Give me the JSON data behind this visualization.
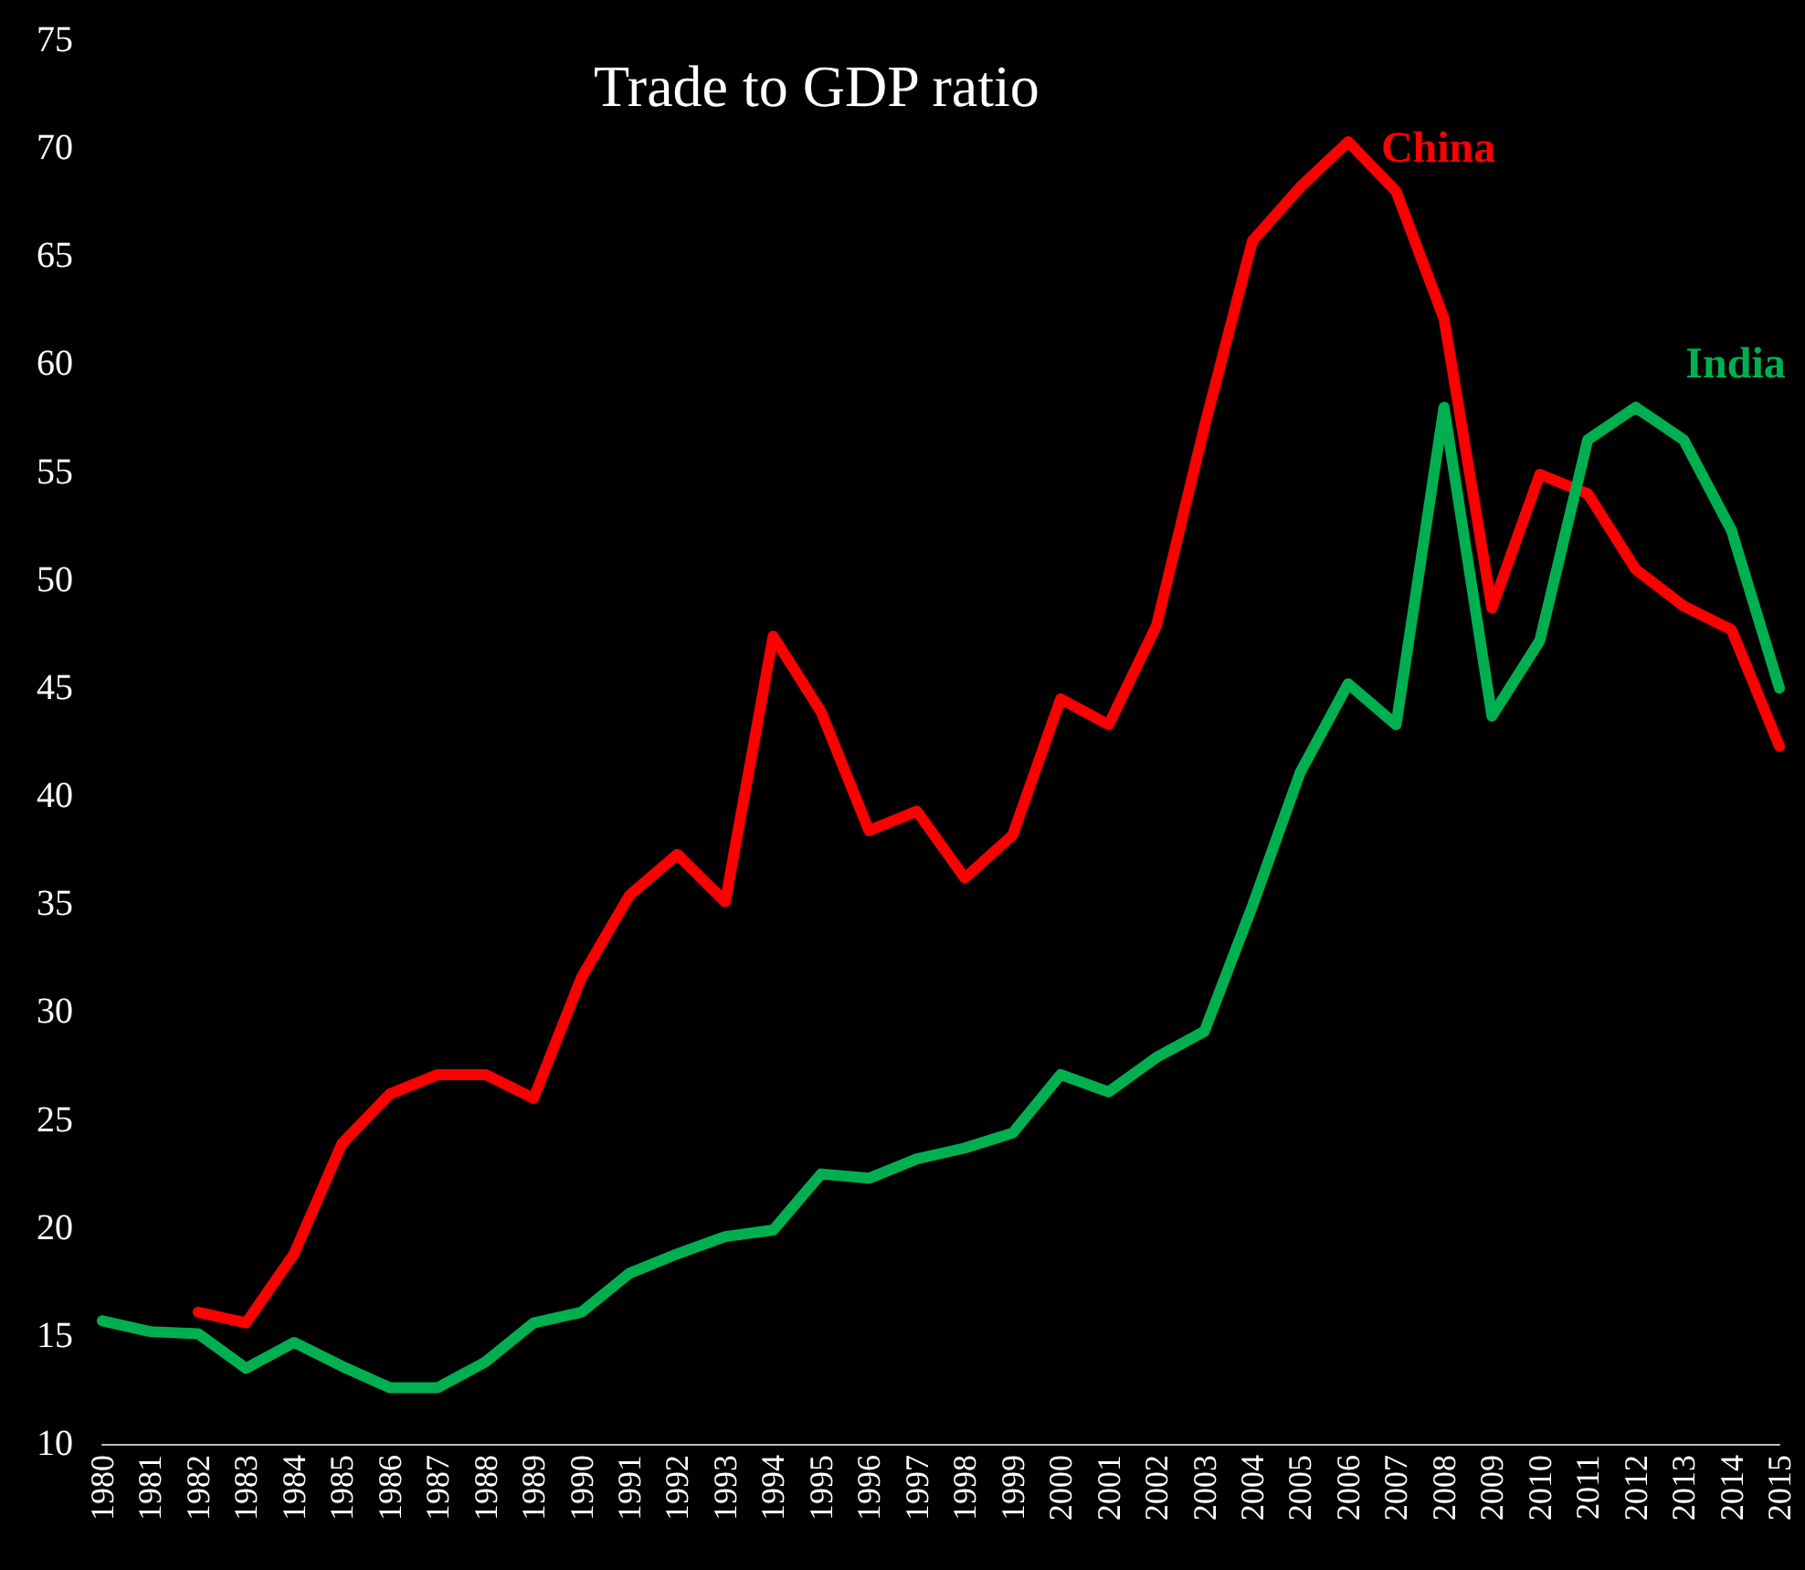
{
  "chart_data": {
    "type": "line",
    "title": "Trade to GDP ratio",
    "categories": [
      "1980",
      "1981",
      "1982",
      "1983",
      "1984",
      "1985",
      "1986",
      "1987",
      "1988",
      "1989",
      "1990",
      "1991",
      "1992",
      "1993",
      "1994",
      "1995",
      "1996",
      "1997",
      "1998",
      "1999",
      "2000",
      "2001",
      "2002",
      "2003",
      "2004",
      "2005",
      "2006",
      "2007",
      "2008",
      "2009",
      "2010",
      "2011",
      "2012",
      "2013",
      "2014",
      "2015"
    ],
    "series": [
      {
        "name": "China",
        "color": "#ff0000",
        "values": [
          null,
          null,
          16.1,
          15.6,
          18.8,
          23.9,
          26.2,
          27.1,
          27.1,
          26.0,
          31.6,
          35.4,
          37.3,
          35.1,
          47.4,
          43.9,
          38.4,
          39.3,
          36.2,
          38.2,
          44.5,
          43.3,
          47.9,
          57.1,
          65.7,
          68.2,
          70.3,
          68.0,
          62.1,
          48.7,
          54.9,
          54.0,
          50.5,
          48.8,
          47.7,
          42.3
        ]
      },
      {
        "name": "India",
        "color": "#00b050",
        "values": [
          15.7,
          15.2,
          15.1,
          13.5,
          14.7,
          13.6,
          12.6,
          12.6,
          13.8,
          15.6,
          16.1,
          17.9,
          18.8,
          19.6,
          19.9,
          22.5,
          22.3,
          23.2,
          23.7,
          24.4,
          27.1,
          26.3,
          27.9,
          29.1,
          34.9,
          41.1,
          45.2,
          43.3,
          58.0,
          43.7,
          47.2,
          56.5,
          58.0,
          56.5,
          52.3,
          45.0
        ]
      }
    ],
    "ylim": [
      10,
      75
    ],
    "yticks": [
      10,
      15,
      20,
      25,
      30,
      35,
      40,
      45,
      50,
      55,
      60,
      65,
      70,
      75
    ],
    "grid": false,
    "legend": false,
    "marker": "none",
    "line_style": "solid"
  }
}
